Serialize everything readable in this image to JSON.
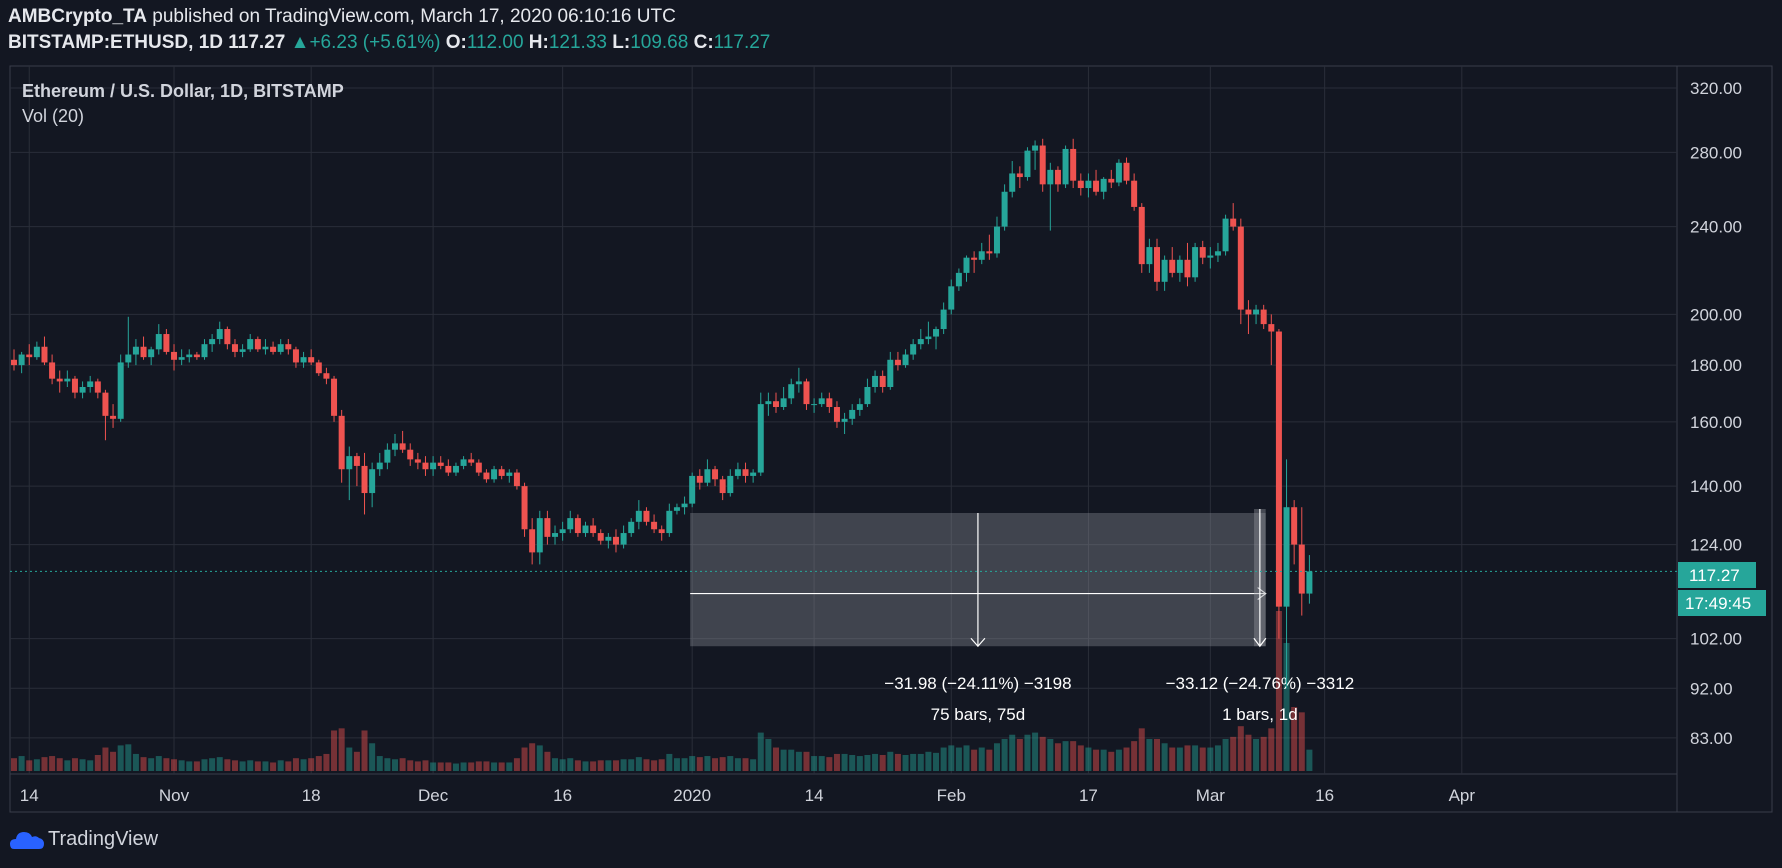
{
  "header": {
    "author": "AMBCrypto_TA",
    "published_text": " published on TradingView.com, March 17, 2020 06:10:16 UTC",
    "symbol": "BITSTAMP:ETHUSD, 1D",
    "last": "117.27",
    "change": "+6.23 (+5.61%)",
    "o_label": "O:",
    "o": "112.00",
    "h_label": "H:",
    "h": "121.33",
    "l_label": "L:",
    "l": "109.68",
    "c_label": "C:",
    "c": "117.27"
  },
  "legend": {
    "title": "Ethereum / U.S. Dollar, 1D, BITSTAMP",
    "volume": "Vol (20)"
  },
  "price_badge": "117.27",
  "countdown_badge": "17:49:45",
  "brand": "TradingView",
  "colors": {
    "up": "#26a69a",
    "down": "#ef5350",
    "bg": "#131722",
    "grid": "#2a2e39",
    "text": "#d1d4dc"
  },
  "chart_data": {
    "type": "candlestick",
    "title": "Ethereum / U.S. Dollar, 1D, BITSTAMP",
    "y_scale": "log",
    "ylim": [
      77,
      335
    ],
    "y_ticks": [
      "320.00",
      "280.00",
      "240.00",
      "200.00",
      "180.00",
      "160.00",
      "140.00",
      "124.00",
      "102.00",
      "92.00",
      "83.00"
    ],
    "x_ticks": [
      "14",
      "Nov",
      "18",
      "Dec",
      "16",
      "2020",
      "14",
      "Feb",
      "17",
      "Mar",
      "16",
      "Apr"
    ],
    "last_price": 117.27,
    "candles": [
      {
        "o": 182,
        "h": 186,
        "l": 178,
        "c": 180,
        "v": 12
      },
      {
        "o": 180,
        "h": 185,
        "l": 177,
        "c": 184,
        "v": 14
      },
      {
        "o": 184,
        "h": 188,
        "l": 180,
        "c": 183,
        "v": 10
      },
      {
        "o": 183,
        "h": 189,
        "l": 182,
        "c": 187,
        "v": 11
      },
      {
        "o": 187,
        "h": 191,
        "l": 180,
        "c": 181,
        "v": 13
      },
      {
        "o": 181,
        "h": 184,
        "l": 173,
        "c": 175,
        "v": 14
      },
      {
        "o": 175,
        "h": 178,
        "l": 170,
        "c": 174,
        "v": 12
      },
      {
        "o": 174,
        "h": 178,
        "l": 172,
        "c": 175,
        "v": 10
      },
      {
        "o": 175,
        "h": 176,
        "l": 168,
        "c": 170,
        "v": 12
      },
      {
        "o": 170,
        "h": 174,
        "l": 168,
        "c": 172,
        "v": 11
      },
      {
        "o": 172,
        "h": 176,
        "l": 170,
        "c": 174,
        "v": 10
      },
      {
        "o": 174,
        "h": 175,
        "l": 168,
        "c": 170,
        "v": 15
      },
      {
        "o": 170,
        "h": 171,
        "l": 154,
        "c": 162,
        "v": 22
      },
      {
        "o": 162,
        "h": 166,
        "l": 158,
        "c": 161,
        "v": 18
      },
      {
        "o": 161,
        "h": 184,
        "l": 160,
        "c": 181,
        "v": 24
      },
      {
        "o": 181,
        "h": 199,
        "l": 179,
        "c": 184,
        "v": 25
      },
      {
        "o": 184,
        "h": 190,
        "l": 180,
        "c": 187,
        "v": 16
      },
      {
        "o": 187,
        "h": 191,
        "l": 182,
        "c": 183,
        "v": 13
      },
      {
        "o": 183,
        "h": 187,
        "l": 180,
        "c": 186,
        "v": 12
      },
      {
        "o": 186,
        "h": 196,
        "l": 184,
        "c": 192,
        "v": 14
      },
      {
        "o": 192,
        "h": 194,
        "l": 184,
        "c": 185,
        "v": 12
      },
      {
        "o": 185,
        "h": 188,
        "l": 178,
        "c": 182,
        "v": 11
      },
      {
        "o": 182,
        "h": 186,
        "l": 180,
        "c": 183,
        "v": 10
      },
      {
        "o": 183,
        "h": 186,
        "l": 181,
        "c": 184,
        "v": 9
      },
      {
        "o": 184,
        "h": 185,
        "l": 182,
        "c": 183,
        "v": 9
      },
      {
        "o": 183,
        "h": 190,
        "l": 182,
        "c": 188,
        "v": 11
      },
      {
        "o": 188,
        "h": 192,
        "l": 185,
        "c": 190,
        "v": 12
      },
      {
        "o": 190,
        "h": 197,
        "l": 188,
        "c": 194,
        "v": 13
      },
      {
        "o": 194,
        "h": 195,
        "l": 186,
        "c": 188,
        "v": 11
      },
      {
        "o": 188,
        "h": 190,
        "l": 183,
        "c": 185,
        "v": 10
      },
      {
        "o": 185,
        "h": 188,
        "l": 183,
        "c": 186,
        "v": 9
      },
      {
        "o": 186,
        "h": 192,
        "l": 185,
        "c": 190,
        "v": 10
      },
      {
        "o": 190,
        "h": 191,
        "l": 185,
        "c": 186,
        "v": 9
      },
      {
        "o": 186,
        "h": 190,
        "l": 184,
        "c": 187,
        "v": 9
      },
      {
        "o": 187,
        "h": 189,
        "l": 184,
        "c": 185,
        "v": 8
      },
      {
        "o": 185,
        "h": 190,
        "l": 184,
        "c": 188,
        "v": 10
      },
      {
        "o": 188,
        "h": 190,
        "l": 184,
        "c": 186,
        "v": 9
      },
      {
        "o": 186,
        "h": 187,
        "l": 179,
        "c": 181,
        "v": 12
      },
      {
        "o": 181,
        "h": 185,
        "l": 179,
        "c": 183,
        "v": 11
      },
      {
        "o": 183,
        "h": 186,
        "l": 180,
        "c": 181,
        "v": 12
      },
      {
        "o": 181,
        "h": 182,
        "l": 176,
        "c": 177,
        "v": 14
      },
      {
        "o": 177,
        "h": 179,
        "l": 173,
        "c": 175,
        "v": 16
      },
      {
        "o": 175,
        "h": 176,
        "l": 160,
        "c": 162,
        "v": 38
      },
      {
        "o": 162,
        "h": 164,
        "l": 141,
        "c": 145,
        "v": 40
      },
      {
        "o": 145,
        "h": 152,
        "l": 136,
        "c": 149,
        "v": 22
      },
      {
        "o": 149,
        "h": 150,
        "l": 140,
        "c": 146,
        "v": 18
      },
      {
        "o": 146,
        "h": 150,
        "l": 132,
        "c": 138,
        "v": 38
      },
      {
        "o": 138,
        "h": 147,
        "l": 134,
        "c": 145,
        "v": 26
      },
      {
        "o": 145,
        "h": 150,
        "l": 143,
        "c": 147,
        "v": 14
      },
      {
        "o": 147,
        "h": 153,
        "l": 145,
        "c": 151,
        "v": 12
      },
      {
        "o": 151,
        "h": 156,
        "l": 149,
        "c": 153,
        "v": 11
      },
      {
        "o": 153,
        "h": 157,
        "l": 150,
        "c": 151,
        "v": 12
      },
      {
        "o": 151,
        "h": 153,
        "l": 146,
        "c": 148,
        "v": 10
      },
      {
        "o": 148,
        "h": 150,
        "l": 145,
        "c": 147,
        "v": 9
      },
      {
        "o": 147,
        "h": 149,
        "l": 143,
        "c": 145,
        "v": 10
      },
      {
        "o": 145,
        "h": 149,
        "l": 143,
        "c": 147,
        "v": 8
      },
      {
        "o": 147,
        "h": 149,
        "l": 145,
        "c": 146,
        "v": 8
      },
      {
        "o": 146,
        "h": 148,
        "l": 143,
        "c": 144,
        "v": 8
      },
      {
        "o": 144,
        "h": 147,
        "l": 143,
        "c": 146,
        "v": 7
      },
      {
        "o": 146,
        "h": 149,
        "l": 145,
        "c": 148,
        "v": 8
      },
      {
        "o": 148,
        "h": 150,
        "l": 146,
        "c": 147,
        "v": 8
      },
      {
        "o": 147,
        "h": 148,
        "l": 143,
        "c": 144,
        "v": 9
      },
      {
        "o": 144,
        "h": 145,
        "l": 141,
        "c": 142,
        "v": 9
      },
      {
        "o": 142,
        "h": 146,
        "l": 141,
        "c": 145,
        "v": 8
      },
      {
        "o": 145,
        "h": 146,
        "l": 142,
        "c": 143,
        "v": 8
      },
      {
        "o": 143,
        "h": 145,
        "l": 141,
        "c": 144,
        "v": 8
      },
      {
        "o": 144,
        "h": 145,
        "l": 139,
        "c": 140,
        "v": 12
      },
      {
        "o": 140,
        "h": 141,
        "l": 126,
        "c": 128,
        "v": 22
      },
      {
        "o": 128,
        "h": 131,
        "l": 119,
        "c": 122,
        "v": 26
      },
      {
        "o": 122,
        "h": 133,
        "l": 119,
        "c": 131,
        "v": 24
      },
      {
        "o": 131,
        "h": 133,
        "l": 124,
        "c": 126,
        "v": 18
      },
      {
        "o": 126,
        "h": 129,
        "l": 124,
        "c": 127,
        "v": 12
      },
      {
        "o": 127,
        "h": 130,
        "l": 125,
        "c": 128,
        "v": 11
      },
      {
        "o": 128,
        "h": 133,
        "l": 127,
        "c": 131,
        "v": 12
      },
      {
        "o": 131,
        "h": 132,
        "l": 126,
        "c": 127,
        "v": 10
      },
      {
        "o": 127,
        "h": 130,
        "l": 126,
        "c": 129,
        "v": 9
      },
      {
        "o": 129,
        "h": 131,
        "l": 126,
        "c": 127,
        "v": 9
      },
      {
        "o": 127,
        "h": 128,
        "l": 124,
        "c": 125,
        "v": 10
      },
      {
        "o": 125,
        "h": 127,
        "l": 123,
        "c": 126,
        "v": 10
      },
      {
        "o": 126,
        "h": 128,
        "l": 122,
        "c": 124,
        "v": 10
      },
      {
        "o": 124,
        "h": 129,
        "l": 123,
        "c": 127,
        "v": 11
      },
      {
        "o": 127,
        "h": 131,
        "l": 126,
        "c": 130,
        "v": 11
      },
      {
        "o": 130,
        "h": 136,
        "l": 128,
        "c": 133,
        "v": 13
      },
      {
        "o": 133,
        "h": 134,
        "l": 129,
        "c": 130,
        "v": 11
      },
      {
        "o": 130,
        "h": 132,
        "l": 127,
        "c": 128,
        "v": 10
      },
      {
        "o": 128,
        "h": 129,
        "l": 125,
        "c": 127,
        "v": 11
      },
      {
        "o": 127,
        "h": 135,
        "l": 126,
        "c": 133,
        "v": 16
      },
      {
        "o": 133,
        "h": 135,
        "l": 132,
        "c": 134,
        "v": 12
      },
      {
        "o": 134,
        "h": 137,
        "l": 132,
        "c": 135,
        "v": 12
      },
      {
        "o": 135,
        "h": 144,
        "l": 134,
        "c": 143,
        "v": 14
      },
      {
        "o": 143,
        "h": 145,
        "l": 139,
        "c": 141,
        "v": 13
      },
      {
        "o": 141,
        "h": 148,
        "l": 140,
        "c": 145,
        "v": 14
      },
      {
        "o": 145,
        "h": 146,
        "l": 140,
        "c": 142,
        "v": 12
      },
      {
        "o": 142,
        "h": 143,
        "l": 136,
        "c": 138,
        "v": 13
      },
      {
        "o": 138,
        "h": 145,
        "l": 137,
        "c": 143,
        "v": 14
      },
      {
        "o": 143,
        "h": 147,
        "l": 142,
        "c": 145,
        "v": 12
      },
      {
        "o": 145,
        "h": 147,
        "l": 141,
        "c": 143,
        "v": 12
      },
      {
        "o": 143,
        "h": 145,
        "l": 141,
        "c": 144,
        "v": 11
      },
      {
        "o": 144,
        "h": 170,
        "l": 143,
        "c": 166,
        "v": 36
      },
      {
        "o": 166,
        "h": 170,
        "l": 162,
        "c": 167,
        "v": 30
      },
      {
        "o": 167,
        "h": 170,
        "l": 163,
        "c": 165,
        "v": 22
      },
      {
        "o": 165,
        "h": 172,
        "l": 164,
        "c": 168,
        "v": 20
      },
      {
        "o": 168,
        "h": 175,
        "l": 166,
        "c": 173,
        "v": 20
      },
      {
        "o": 173,
        "h": 179,
        "l": 170,
        "c": 174,
        "v": 18
      },
      {
        "o": 174,
        "h": 175,
        "l": 164,
        "c": 166,
        "v": 18
      },
      {
        "o": 166,
        "h": 168,
        "l": 163,
        "c": 166,
        "v": 14
      },
      {
        "o": 166,
        "h": 170,
        "l": 165,
        "c": 168,
        "v": 14
      },
      {
        "o": 168,
        "h": 170,
        "l": 163,
        "c": 165,
        "v": 13
      },
      {
        "o": 165,
        "h": 167,
        "l": 158,
        "c": 160,
        "v": 16
      },
      {
        "o": 160,
        "h": 163,
        "l": 156,
        "c": 161,
        "v": 16
      },
      {
        "o": 161,
        "h": 166,
        "l": 159,
        "c": 164,
        "v": 15
      },
      {
        "o": 164,
        "h": 168,
        "l": 162,
        "c": 166,
        "v": 14
      },
      {
        "o": 166,
        "h": 175,
        "l": 165,
        "c": 172,
        "v": 15
      },
      {
        "o": 172,
        "h": 178,
        "l": 170,
        "c": 176,
        "v": 16
      },
      {
        "o": 176,
        "h": 178,
        "l": 170,
        "c": 172,
        "v": 15
      },
      {
        "o": 172,
        "h": 185,
        "l": 171,
        "c": 182,
        "v": 18
      },
      {
        "o": 182,
        "h": 185,
        "l": 178,
        "c": 180,
        "v": 16
      },
      {
        "o": 180,
        "h": 186,
        "l": 179,
        "c": 184,
        "v": 15
      },
      {
        "o": 184,
        "h": 190,
        "l": 182,
        "c": 188,
        "v": 16
      },
      {
        "o": 188,
        "h": 194,
        "l": 186,
        "c": 190,
        "v": 16
      },
      {
        "o": 190,
        "h": 197,
        "l": 188,
        "c": 191,
        "v": 18
      },
      {
        "o": 191,
        "h": 195,
        "l": 186,
        "c": 194,
        "v": 17
      },
      {
        "o": 194,
        "h": 205,
        "l": 192,
        "c": 202,
        "v": 22
      },
      {
        "o": 202,
        "h": 215,
        "l": 200,
        "c": 212,
        "v": 24
      },
      {
        "o": 212,
        "h": 220,
        "l": 210,
        "c": 218,
        "v": 22
      },
      {
        "o": 218,
        "h": 226,
        "l": 214,
        "c": 225,
        "v": 24
      },
      {
        "o": 225,
        "h": 228,
        "l": 218,
        "c": 224,
        "v": 20
      },
      {
        "o": 224,
        "h": 232,
        "l": 222,
        "c": 228,
        "v": 22
      },
      {
        "o": 228,
        "h": 236,
        "l": 224,
        "c": 227,
        "v": 20
      },
      {
        "o": 227,
        "h": 245,
        "l": 225,
        "c": 240,
        "v": 26
      },
      {
        "o": 240,
        "h": 262,
        "l": 238,
        "c": 258,
        "v": 30
      },
      {
        "o": 258,
        "h": 275,
        "l": 255,
        "c": 268,
        "v": 34
      },
      {
        "o": 268,
        "h": 272,
        "l": 260,
        "c": 266,
        "v": 30
      },
      {
        "o": 266,
        "h": 283,
        "l": 264,
        "c": 281,
        "v": 34
      },
      {
        "o": 281,
        "h": 287,
        "l": 270,
        "c": 284,
        "v": 36
      },
      {
        "o": 284,
        "h": 288,
        "l": 258,
        "c": 262,
        "v": 32
      },
      {
        "o": 262,
        "h": 274,
        "l": 238,
        "c": 270,
        "v": 30
      },
      {
        "o": 270,
        "h": 272,
        "l": 258,
        "c": 262,
        "v": 26
      },
      {
        "o": 262,
        "h": 284,
        "l": 260,
        "c": 282,
        "v": 28
      },
      {
        "o": 282,
        "h": 288,
        "l": 260,
        "c": 264,
        "v": 28
      },
      {
        "o": 264,
        "h": 268,
        "l": 256,
        "c": 260,
        "v": 24
      },
      {
        "o": 260,
        "h": 268,
        "l": 255,
        "c": 264,
        "v": 22
      },
      {
        "o": 264,
        "h": 270,
        "l": 256,
        "c": 258,
        "v": 20
      },
      {
        "o": 258,
        "h": 266,
        "l": 254,
        "c": 265,
        "v": 20
      },
      {
        "o": 265,
        "h": 270,
        "l": 260,
        "c": 263,
        "v": 18
      },
      {
        "o": 263,
        "h": 276,
        "l": 261,
        "c": 274,
        "v": 20
      },
      {
        "o": 274,
        "h": 277,
        "l": 262,
        "c": 264,
        "v": 22
      },
      {
        "o": 264,
        "h": 268,
        "l": 248,
        "c": 250,
        "v": 28
      },
      {
        "o": 250,
        "h": 252,
        "l": 218,
        "c": 222,
        "v": 40
      },
      {
        "o": 222,
        "h": 234,
        "l": 218,
        "c": 230,
        "v": 30
      },
      {
        "o": 230,
        "h": 234,
        "l": 210,
        "c": 214,
        "v": 30
      },
      {
        "o": 214,
        "h": 226,
        "l": 210,
        "c": 224,
        "v": 26
      },
      {
        "o": 224,
        "h": 230,
        "l": 216,
        "c": 218,
        "v": 22
      },
      {
        "o": 218,
        "h": 226,
        "l": 214,
        "c": 224,
        "v": 22
      },
      {
        "o": 224,
        "h": 232,
        "l": 212,
        "c": 216,
        "v": 24
      },
      {
        "o": 216,
        "h": 232,
        "l": 214,
        "c": 230,
        "v": 24
      },
      {
        "o": 230,
        "h": 233,
        "l": 222,
        "c": 225,
        "v": 22
      },
      {
        "o": 225,
        "h": 230,
        "l": 220,
        "c": 226,
        "v": 22
      },
      {
        "o": 226,
        "h": 232,
        "l": 223,
        "c": 228,
        "v": 24
      },
      {
        "o": 228,
        "h": 246,
        "l": 226,
        "c": 244,
        "v": 30
      },
      {
        "o": 244,
        "h": 252,
        "l": 238,
        "c": 240,
        "v": 32
      },
      {
        "o": 240,
        "h": 244,
        "l": 196,
        "c": 202,
        "v": 42
      },
      {
        "o": 202,
        "h": 206,
        "l": 192,
        "c": 200,
        "v": 34
      },
      {
        "o": 200,
        "h": 204,
        "l": 196,
        "c": 202,
        "v": 30
      },
      {
        "o": 202,
        "h": 204,
        "l": 194,
        "c": 196,
        "v": 32
      },
      {
        "o": 196,
        "h": 200,
        "l": 180,
        "c": 193,
        "v": 40
      },
      {
        "o": 193,
        "h": 194,
        "l": 102,
        "c": 109,
        "v": 150
      },
      {
        "o": 109,
        "h": 148,
        "l": 92,
        "c": 134,
        "v": 120
      },
      {
        "o": 134,
        "h": 136,
        "l": 119,
        "c": 124,
        "v": 60
      },
      {
        "o": 124,
        "h": 134,
        "l": 107,
        "c": 112,
        "v": 55
      },
      {
        "o": 112,
        "h": 121.33,
        "l": 109.68,
        "c": 117.27,
        "v": 20
      }
    ],
    "measurements": [
      {
        "label": "−31.98 (−24.11%) −3198",
        "bars": "75 bars, 75d",
        "from": "2020",
        "top": 132.4,
        "bottom": 100.4
      },
      {
        "label": "−33.12 (−24.76%) −3312",
        "bars": "1 bars, 1d",
        "top": 133.5,
        "bottom": 100.4
      }
    ]
  }
}
